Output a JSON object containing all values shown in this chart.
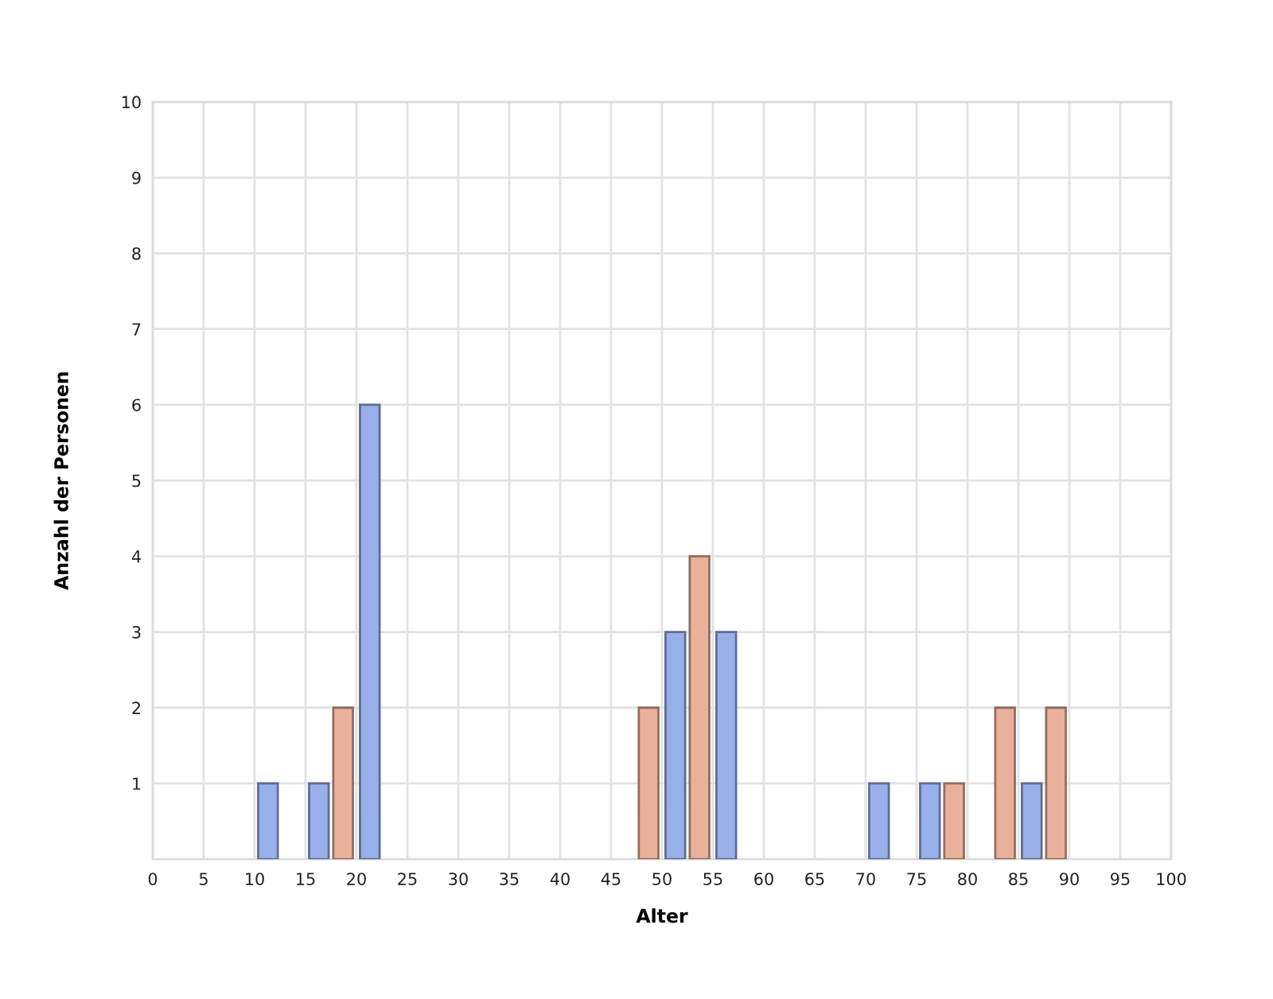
{
  "chart_data": {
    "type": "histogram",
    "xlabel": "Alter",
    "ylabel": "Anzahl der Personen",
    "bins": [
      0,
      5,
      10,
      15,
      20,
      25,
      30,
      35,
      40,
      45,
      50,
      55,
      60,
      65,
      70,
      75,
      80,
      85,
      90,
      95,
      100
    ],
    "series": [
      {
        "color": "#98b0ea",
        "values": [
          0,
          0,
          1,
          1,
          6,
          0,
          0,
          0,
          0,
          0,
          3,
          3,
          0,
          0,
          1,
          1,
          0,
          1,
          0,
          0
        ]
      },
      {
        "color": "#eab19a",
        "values": [
          0,
          0,
          0,
          2,
          0,
          0,
          0,
          0,
          0,
          2,
          4,
          0,
          0,
          0,
          0,
          1,
          2,
          2,
          0,
          0
        ]
      }
    ],
    "xlim": [
      0,
      100
    ],
    "ylim": [
      0,
      10
    ],
    "xticks": [
      0,
      5,
      10,
      15,
      20,
      25,
      30,
      35,
      40,
      45,
      50,
      55,
      60,
      65,
      70,
      75,
      80,
      85,
      90,
      95,
      100
    ],
    "yticks": [
      1,
      2,
      3,
      4,
      5,
      6,
      7,
      8,
      9,
      10
    ],
    "grid": true
  }
}
